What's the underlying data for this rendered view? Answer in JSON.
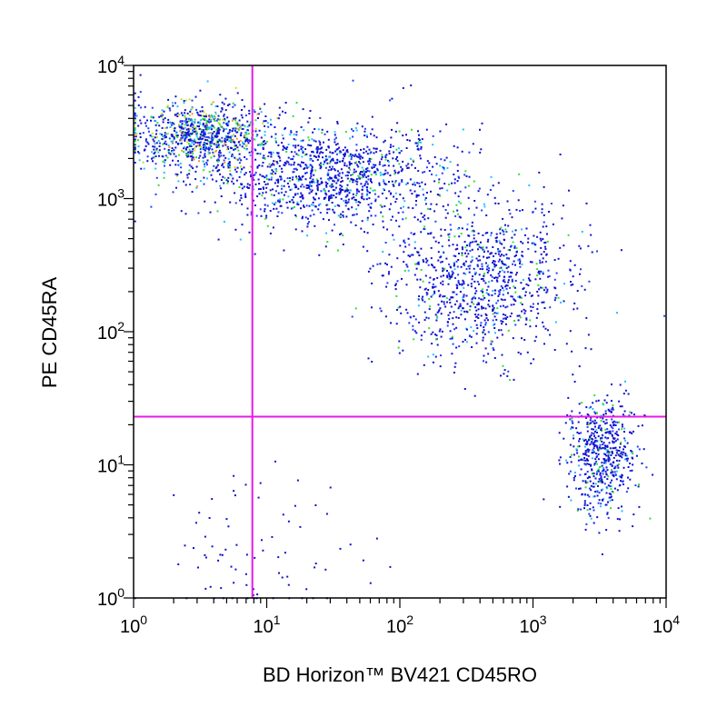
{
  "chart_data": {
    "type": "scatter",
    "scale": "log",
    "xlabel": "BD Horizon™ BV421 CD45RO",
    "ylabel": "PE  CD45RA",
    "xlim": [
      1,
      10000
    ],
    "ylim": [
      1,
      10000
    ],
    "x_ticks": [
      {
        "base": "10",
        "exp": "0",
        "value": 1
      },
      {
        "base": "10",
        "exp": "1",
        "value": 10
      },
      {
        "base": "10",
        "exp": "2",
        "value": 100
      },
      {
        "base": "10",
        "exp": "3",
        "value": 1000
      },
      {
        "base": "10",
        "exp": "4",
        "value": 10000
      }
    ],
    "y_ticks": [
      {
        "base": "10",
        "exp": "0",
        "value": 1
      },
      {
        "base": "10",
        "exp": "1",
        "value": 10
      },
      {
        "base": "10",
        "exp": "2",
        "value": 100
      },
      {
        "base": "10",
        "exp": "3",
        "value": 1000
      },
      {
        "base": "10",
        "exp": "4",
        "value": 10000
      }
    ],
    "quadrant_gate": {
      "x": 7.8,
      "y": 23,
      "color": "#e619e6"
    },
    "populations": [
      {
        "x_center": 3,
        "y_center": 3000,
        "x_spread_log": 0.28,
        "y_spread_log": 0.13,
        "count": 900,
        "density": "high"
      },
      {
        "x_center": 30,
        "y_center": 1500,
        "x_spread_log": 0.45,
        "y_spread_log": 0.2,
        "count": 1200,
        "density": "medium"
      },
      {
        "x_center": 400,
        "y_center": 250,
        "x_spread_log": 0.35,
        "y_spread_log": 0.3,
        "count": 1000,
        "density": "medium"
      },
      {
        "x_center": 3200,
        "y_center": 12,
        "x_spread_log": 0.13,
        "y_spread_log": 0.22,
        "count": 600,
        "density": "medium"
      },
      {
        "x_center": 8,
        "y_center": 2,
        "x_spread_log": 0.35,
        "y_spread_log": 0.3,
        "count": 80,
        "density": "low"
      }
    ],
    "density_colors": [
      "#1010d0",
      "#2040ff",
      "#20c0ff",
      "#30e030",
      "#c0e020",
      "#ff9020"
    ],
    "axis_color": "#000000",
    "background": "#ffffff"
  }
}
